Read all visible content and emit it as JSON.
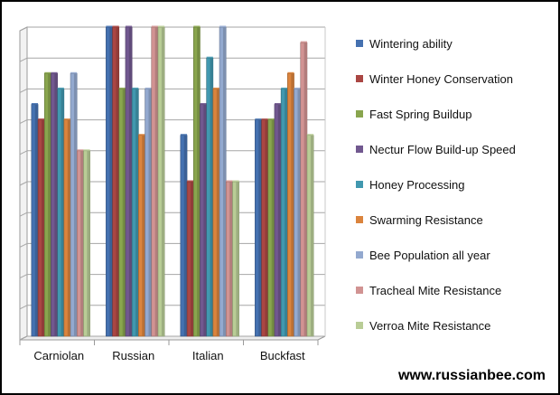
{
  "chart_data": {
    "type": "bar",
    "title": "",
    "xlabel": "",
    "ylabel": "",
    "ylim": [
      0,
      10
    ],
    "grid": true,
    "legend": "right",
    "categories": [
      "Carniolan",
      "Russian",
      "Italian",
      "Buckfast"
    ],
    "series": [
      {
        "name": "Wintering ability",
        "color": "#4571b0",
        "values": [
          7.5,
          10,
          6.5,
          7
        ]
      },
      {
        "name": "Winter Honey Conservation",
        "color": "#aa4643",
        "values": [
          7,
          10,
          5,
          7
        ]
      },
      {
        "name": "Fast Spring Buildup",
        "color": "#89a54e",
        "values": [
          8.5,
          8,
          10,
          7
        ]
      },
      {
        "name": "Nectur Flow Build-up Speed",
        "color": "#71588f",
        "values": [
          8.5,
          10,
          7.5,
          7.5
        ]
      },
      {
        "name": "Honey Processing",
        "color": "#4198af",
        "values": [
          8,
          8,
          9,
          8
        ]
      },
      {
        "name": "Swarming Resistance",
        "color": "#db843d",
        "values": [
          7,
          6.5,
          8,
          8.5
        ]
      },
      {
        "name": "Bee Population all year",
        "color": "#93a9cf",
        "values": [
          8.5,
          8,
          10,
          8
        ]
      },
      {
        "name": "Tracheal Mite Resistance",
        "color": "#d19392",
        "values": [
          6,
          10,
          5,
          9.5
        ]
      },
      {
        "name": "Verroa Mite Resistance",
        "color": "#b9cd96",
        "values": [
          6,
          10,
          5,
          6.5
        ]
      }
    ]
  },
  "footer": {
    "site": "www.russianbee.com"
  }
}
